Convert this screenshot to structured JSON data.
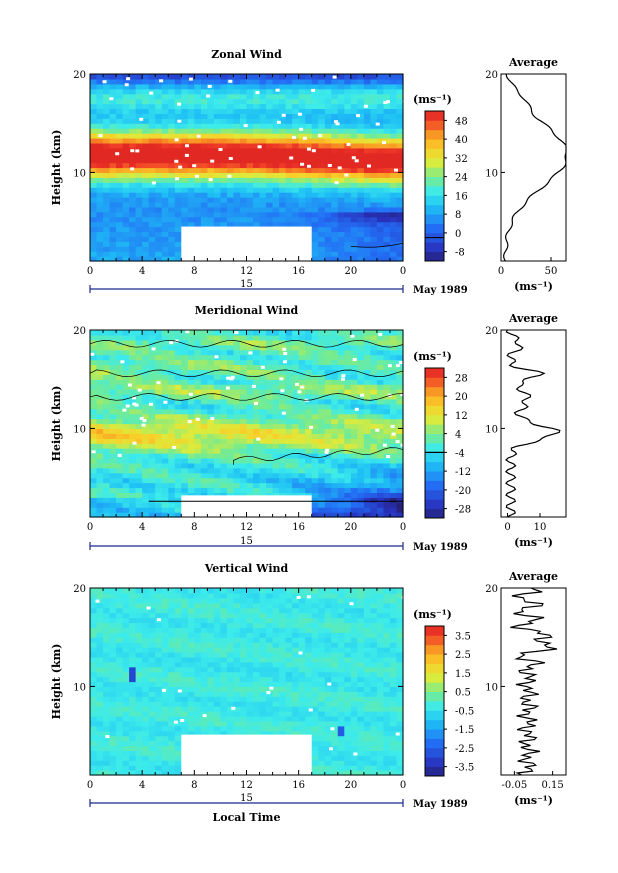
{
  "chart_data": [
    {
      "type": "heatmap",
      "title": "Zonal Wind",
      "ylabel": "Height (km)",
      "y_ticks": [
        "20",
        "10"
      ],
      "x_ticks": [
        "0",
        "4",
        "8",
        "12",
        "16",
        "20",
        "0"
      ],
      "date_axis": {
        "day": "15",
        "month_year": "May 1989"
      },
      "colorbar": {
        "unit": "(ms⁻¹)",
        "labels": [
          "48",
          "40",
          "32",
          "24",
          "16",
          "8",
          "0",
          "-8"
        ],
        "vmin": -12,
        "vmax": 52
      },
      "profile": {
        "title": "Average",
        "xlabel": "(ms⁻¹)",
        "x_ticks": [
          "0",
          "50"
        ],
        "y_ticks": [
          "20",
          "10"
        ],
        "xlim": [
          0,
          65
        ]
      },
      "data_gap": {
        "from_hour": 7,
        "to_hour": 17,
        "height_km": [
          1.5,
          4.5
        ]
      }
    },
    {
      "type": "heatmap",
      "title": "Meridional Wind",
      "ylabel": "Height (km)",
      "y_ticks": [
        "20",
        "10"
      ],
      "x_ticks": [
        "0",
        "4",
        "8",
        "12",
        "16",
        "20",
        "0"
      ],
      "date_axis": {
        "day": "15",
        "month_year": "May 1989"
      },
      "colorbar": {
        "unit": "(ms⁻¹)",
        "labels": [
          "28",
          "20",
          "12",
          "4",
          "-4",
          "-12",
          "-20",
          "-28"
        ],
        "vmin": -32,
        "vmax": 32
      },
      "profile": {
        "title": "Average",
        "xlabel": "(ms⁻¹)",
        "x_ticks": [
          "0",
          "10"
        ],
        "y_ticks": [
          "20",
          "10"
        ],
        "xlim": [
          -2,
          18
        ]
      },
      "data_gap": {
        "from_hour": 7,
        "to_hour": 17,
        "height_km": [
          1.5,
          3.2
        ]
      }
    },
    {
      "type": "heatmap",
      "title": "Vertical Wind",
      "ylabel": "Height (km)",
      "xlabel": "Local Time",
      "y_ticks": [
        "20",
        "10"
      ],
      "x_ticks": [
        "0",
        "4",
        "8",
        "12",
        "16",
        "20",
        "0"
      ],
      "date_axis": {
        "day": "15",
        "month_year": "May 1989"
      },
      "colorbar": {
        "unit": "(ms⁻¹)",
        "labels": [
          "3.5",
          "2.5",
          "1.5",
          "0.5",
          "-0.5",
          "-1.5",
          "-2.5",
          "-3.5"
        ],
        "vmin": -4,
        "vmax": 4
      },
      "profile": {
        "title": "Average",
        "xlabel": "(ms⁻¹)",
        "x_ticks": [
          "-0.05",
          "0.15"
        ],
        "y_ticks": [
          "20",
          "10"
        ],
        "xlim": [
          -0.12,
          0.22
        ]
      },
      "data_gap": {
        "from_hour": 7,
        "to_hour": 17,
        "height_km": [
          1.5,
          5.1
        ]
      }
    }
  ]
}
